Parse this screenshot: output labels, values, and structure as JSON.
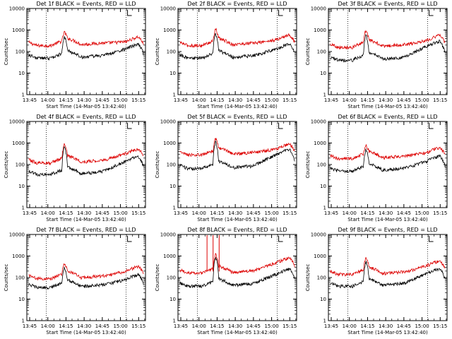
{
  "chart_data": {
    "type": "line",
    "title_template": "Det {n}f BLACK = Events, RED = LLD",
    "ylabel": "Counts/sec",
    "xlabel": "Start Time (14-Mar-05 13:42:40)",
    "x_tick_labels": [
      "13:45",
      "14:00",
      "14:15",
      "14:30",
      "14:45",
      "15:00",
      "15:15"
    ],
    "x_ticks_min": [
      2.33,
      17.33,
      32.33,
      47.33,
      62.33,
      77.33,
      92.33
    ],
    "xlim_min": [
      0,
      98
    ],
    "y_tick_labels": [
      "1",
      "10",
      "100",
      "1000",
      "10000"
    ],
    "ylim": [
      1,
      10000
    ],
    "y_scale": "log",
    "marker_lines_min": [
      16,
      82
    ],
    "series_colors": {
      "Events": "#000000",
      "LLD": "#dd0000"
    },
    "panels": [
      {
        "detector": "1",
        "title": "Det 1f BLACK = Events, RED = LLD",
        "events": {
          "base": 50,
          "flare_peak": 530,
          "end_peak": 220,
          "end": 55
        },
        "lld": {
          "base": 190,
          "flare_peak": 820,
          "end_peak": 480,
          "end": 190
        },
        "spikes": []
      },
      {
        "detector": "2",
        "title": "Det 2f BLACK = Events, RED = LLD",
        "events": {
          "base": 50,
          "flare_peak": 720,
          "end_peak": 230,
          "end": 60
        },
        "lld": {
          "base": 190,
          "flare_peak": 1150,
          "end_peak": 600,
          "end": 220
        },
        "spikes": []
      },
      {
        "detector": "3",
        "title": "Det 3f BLACK = Events, RED = LLD",
        "events": {
          "base": 40,
          "flare_peak": 600,
          "end_peak": 300,
          "end": 55
        },
        "lld": {
          "base": 160,
          "flare_peak": 1050,
          "end_peak": 580,
          "end": 210
        },
        "spikes": []
      },
      {
        "detector": "4",
        "title": "Det 4f BLACK = Events, RED = LLD",
        "events": {
          "base": 35,
          "flare_peak": 650,
          "end_peak": 240,
          "end": 55
        },
        "lld": {
          "base": 120,
          "flare_peak": 860,
          "end_peak": 540,
          "end": 220
        },
        "spikes": []
      },
      {
        "detector": "5",
        "title": "Det 5f BLACK = Events, RED = LLD",
        "events": {
          "base": 65,
          "flare_peak": 1150,
          "end_peak": 500,
          "end": 90
        },
        "lld": {
          "base": 280,
          "flare_peak": 1600,
          "end_peak": 900,
          "end": 330
        },
        "spikes": []
      },
      {
        "detector": "6",
        "title": "Det 6f BLACK = Events, RED = LLD",
        "events": {
          "base": 50,
          "flare_peak": 500,
          "end_peak": 250,
          "end": 55
        },
        "lld": {
          "base": 190,
          "flare_peak": 800,
          "end_peak": 620,
          "end": 240
        },
        "spikes": []
      },
      {
        "detector": "7",
        "title": "Det 7f BLACK = Events, RED = LLD",
        "events": {
          "base": 35,
          "flare_peak": 280,
          "end_peak": 140,
          "end": 40
        },
        "lld": {
          "base": 90,
          "flare_peak": 460,
          "end_peak": 330,
          "end": 150
        },
        "spikes": []
      },
      {
        "detector": "8",
        "title": "Det 8f BLACK = Events, RED = LLD",
        "events": {
          "base": 40,
          "flare_peak": 900,
          "end_peak": 250,
          "end": 65
        },
        "lld": {
          "base": 160,
          "flare_peak": 1200,
          "end_peak": 850,
          "end": 260
        },
        "spikes": [
          24,
          29,
          34
        ]
      },
      {
        "detector": "9",
        "title": "Det 9f BLACK = Events, RED = LLD",
        "events": {
          "base": 40,
          "flare_peak": 560,
          "end_peak": 260,
          "end": 55
        },
        "lld": {
          "base": 140,
          "flare_peak": 850,
          "end_peak": 620,
          "end": 230
        },
        "spikes": []
      }
    ]
  }
}
